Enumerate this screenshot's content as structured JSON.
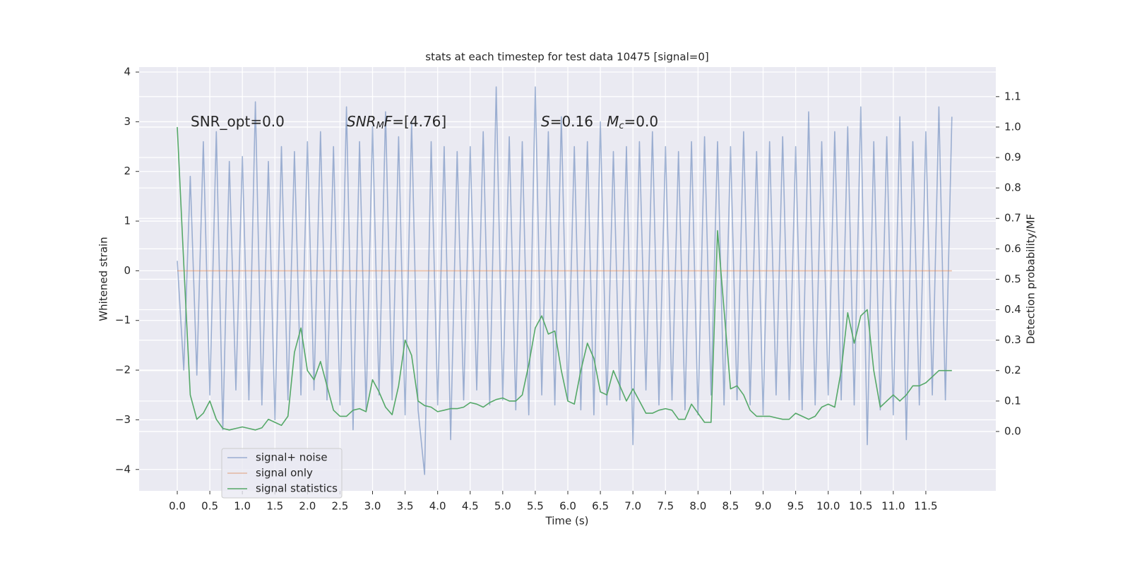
{
  "chart_data": {
    "type": "line",
    "title": "stats at each timestep for test data 10475 [signal=0]",
    "xlabel": "Time (s)",
    "ylabel": "Whitened strain",
    "y2label": "Detection probability/MF",
    "annotations": [
      [
        {
          "text": "SNR_opt=0.0",
          "style": "normal"
        }
      ],
      [
        {
          "text": "SNR",
          "style": "italic"
        },
        {
          "text": "M",
          "style": "sub"
        },
        {
          "text": "F",
          "style": "italic"
        },
        {
          "text": "=[4.76]",
          "style": "normal"
        }
      ],
      [
        {
          "text": "S",
          "style": "italic"
        },
        {
          "text": "=0.16   ",
          "style": "normal"
        },
        {
          "text": "M",
          "style": "italic"
        },
        {
          "text": "c",
          "style": "sub"
        },
        {
          "text": "=0.0",
          "style": "normal"
        }
      ]
    ],
    "x": [
      0.0,
      0.1,
      0.2,
      0.3,
      0.4,
      0.5,
      0.6,
      0.7,
      0.8,
      0.9,
      1.0,
      1.1,
      1.2,
      1.3,
      1.4,
      1.5,
      1.6,
      1.7,
      1.8,
      1.9,
      2.0,
      2.1,
      2.2,
      2.3,
      2.4,
      2.5,
      2.6,
      2.7,
      2.8,
      2.9,
      3.0,
      3.1,
      3.2,
      3.3,
      3.4,
      3.5,
      3.6,
      3.7,
      3.8,
      3.9,
      4.0,
      4.1,
      4.2,
      4.3,
      4.4,
      4.5,
      4.6,
      4.7,
      4.8,
      4.9,
      5.0,
      5.1,
      5.2,
      5.3,
      5.4,
      5.5,
      5.6,
      5.7,
      5.8,
      5.9,
      6.0,
      6.1,
      6.2,
      6.3,
      6.4,
      6.5,
      6.6,
      6.7,
      6.8,
      6.9,
      7.0,
      7.1,
      7.2,
      7.3,
      7.4,
      7.5,
      7.6,
      7.7,
      7.8,
      7.9,
      8.0,
      8.1,
      8.2,
      8.3,
      8.4,
      8.5,
      8.6,
      8.7,
      8.8,
      8.9,
      9.0,
      9.1,
      9.2,
      9.3,
      9.4,
      9.5,
      9.6,
      9.7,
      9.8,
      9.9,
      10.0,
      10.1,
      10.2,
      10.3,
      10.4,
      10.5,
      10.6,
      10.7,
      10.8,
      10.9,
      11.0,
      11.1,
      11.2,
      11.3,
      11.4,
      11.5,
      11.6,
      11.7,
      11.8,
      11.9
    ],
    "series": [
      {
        "name": "signal+ noise",
        "color": "#4c72b0",
        "opacity": 0.5,
        "values": [
          0.2,
          -2.0,
          1.9,
          -2.1,
          2.6,
          -2.5,
          2.8,
          -3.2,
          2.2,
          -2.4,
          2.3,
          -2.6,
          3.4,
          -2.7,
          2.2,
          -3.0,
          2.5,
          -2.6,
          2.4,
          -2.5,
          2.6,
          -2.4,
          2.8,
          -2.6,
          2.5,
          -2.7,
          3.3,
          -3.2,
          2.6,
          -2.8,
          2.9,
          -2.5,
          3.2,
          -2.6,
          2.7,
          -2.9,
          3.0,
          -2.8,
          -4.1,
          2.6,
          -2.7,
          2.5,
          -3.4,
          2.4,
          -2.6,
          2.5,
          -2.4,
          2.8,
          -2.7,
          3.7,
          -2.6,
          2.7,
          -2.8,
          2.6,
          -2.9,
          3.7,
          -2.5,
          2.8,
          -2.7,
          3.1,
          -2.6,
          2.5,
          -2.8,
          2.6,
          -2.9,
          3.0,
          -2.7,
          2.4,
          -2.6,
          2.5,
          -3.5,
          2.6,
          -2.4,
          2.8,
          -2.7,
          2.5,
          -2.6,
          2.4,
          -2.8,
          2.6,
          -2.9,
          2.7,
          -2.5,
          2.6,
          -2.7,
          2.5,
          -2.6,
          2.8,
          -2.7,
          2.4,
          -2.9,
          2.6,
          -2.5,
          2.7,
          -2.6,
          2.5,
          -2.8,
          3.2,
          -2.7,
          2.6,
          -2.5,
          2.8,
          -2.6,
          2.9,
          -2.7,
          3.3,
          -3.5,
          2.6,
          -2.8,
          2.7,
          -2.9,
          3.1,
          -3.4,
          2.6,
          -2.7,
          2.8,
          -2.5,
          3.3,
          -2.6,
          3.1
        ]
      },
      {
        "name": "signal only",
        "color": "#dd8452",
        "opacity": 0.5,
        "values": [
          0,
          0,
          0,
          0,
          0,
          0,
          0,
          0,
          0,
          0,
          0,
          0,
          0,
          0,
          0,
          0,
          0,
          0,
          0,
          0,
          0,
          0,
          0,
          0,
          0,
          0,
          0,
          0,
          0,
          0,
          0,
          0,
          0,
          0,
          0,
          0,
          0,
          0,
          0,
          0,
          0,
          0,
          0,
          0,
          0,
          0,
          0,
          0,
          0,
          0,
          0,
          0,
          0,
          0,
          0,
          0,
          0,
          0,
          0,
          0,
          0,
          0,
          0,
          0,
          0,
          0,
          0,
          0,
          0,
          0,
          0,
          0,
          0,
          0,
          0,
          0,
          0,
          0,
          0,
          0,
          0,
          0,
          0,
          0,
          0,
          0,
          0,
          0,
          0,
          0,
          0,
          0,
          0,
          0,
          0,
          0,
          0,
          0,
          0,
          0,
          0,
          0,
          0,
          0,
          0,
          0,
          0,
          0,
          0,
          0,
          0,
          0,
          0,
          0,
          0,
          0,
          0,
          0,
          0,
          0
        ]
      },
      {
        "name": "signal statistics",
        "color": "#55a868",
        "opacity": 1,
        "axis": "y2",
        "values": [
          1.0,
          0.55,
          0.12,
          0.04,
          0.06,
          0.1,
          0.04,
          0.01,
          0.005,
          0.01,
          0.015,
          0.01,
          0.005,
          0.012,
          0.04,
          0.03,
          0.02,
          0.05,
          0.26,
          0.34,
          0.2,
          0.17,
          0.23,
          0.15,
          0.07,
          0.05,
          0.05,
          0.07,
          0.075,
          0.065,
          0.17,
          0.13,
          0.08,
          0.055,
          0.15,
          0.3,
          0.25,
          0.1,
          0.085,
          0.08,
          0.065,
          0.07,
          0.075,
          0.075,
          0.08,
          0.095,
          0.09,
          0.08,
          0.095,
          0.105,
          0.11,
          0.1,
          0.1,
          0.12,
          0.22,
          0.34,
          0.38,
          0.32,
          0.33,
          0.2,
          0.1,
          0.09,
          0.2,
          0.29,
          0.24,
          0.13,
          0.12,
          0.2,
          0.15,
          0.1,
          0.14,
          0.1,
          0.06,
          0.06,
          0.07,
          0.075,
          0.07,
          0.04,
          0.04,
          0.09,
          0.06,
          0.03,
          0.03,
          0.66,
          0.4,
          0.14,
          0.15,
          0.12,
          0.07,
          0.05,
          0.05,
          0.05,
          0.045,
          0.04,
          0.04,
          0.06,
          0.05,
          0.04,
          0.05,
          0.08,
          0.09,
          0.08,
          0.2,
          0.39,
          0.29,
          0.38,
          0.4,
          0.2,
          0.08,
          0.1,
          0.12,
          0.1,
          0.12,
          0.15,
          0.15,
          0.16,
          0.18,
          0.2,
          0.2,
          0.2
        ]
      }
    ],
    "xlim": [
      -0.586,
      12.575
    ],
    "xticks": [
      {
        "value": 0,
        "label": "0.0"
      },
      0.5,
      {
        "value": 1,
        "label": "1.0"
      },
      1.5,
      {
        "value": 2,
        "label": "2.0"
      },
      2.5,
      {
        "value": 3,
        "label": "3.0"
      },
      3.5,
      {
        "value": 4,
        "label": "4.0"
      },
      4.5,
      {
        "value": 5,
        "label": "5.0"
      },
      5.5,
      {
        "value": 6,
        "label": "6.0"
      },
      6.5,
      {
        "value": 7,
        "label": "7.0"
      },
      7.5,
      {
        "value": 8,
        "label": "8.0"
      },
      8.5,
      {
        "value": 9,
        "label": "9.0"
      },
      9.5,
      {
        "value": 10,
        "label": "10.0"
      },
      10.5,
      {
        "value": 11,
        "label": "11.0"
      },
      11.5
    ],
    "ylim": [
      -4.43,
      4.1
    ],
    "yticks": [
      {
        "value": -4,
        "label": "−4"
      },
      {
        "value": -3,
        "label": "−3"
      },
      {
        "value": -2,
        "label": "−2"
      },
      {
        "value": -1,
        "label": "−1"
      },
      0,
      1,
      2,
      3,
      4
    ],
    "y2lim": [
      -0.195,
      1.197
    ],
    "y2ticks": [
      {
        "value": 0,
        "label": "0.0"
      },
      0.1,
      0.2,
      0.3,
      0.4,
      0.5,
      0.6,
      0.7,
      0.8,
      0.9,
      {
        "value": 1,
        "label": "1.0"
      },
      1.1
    ],
    "grid": true,
    "legend": "lower left"
  }
}
